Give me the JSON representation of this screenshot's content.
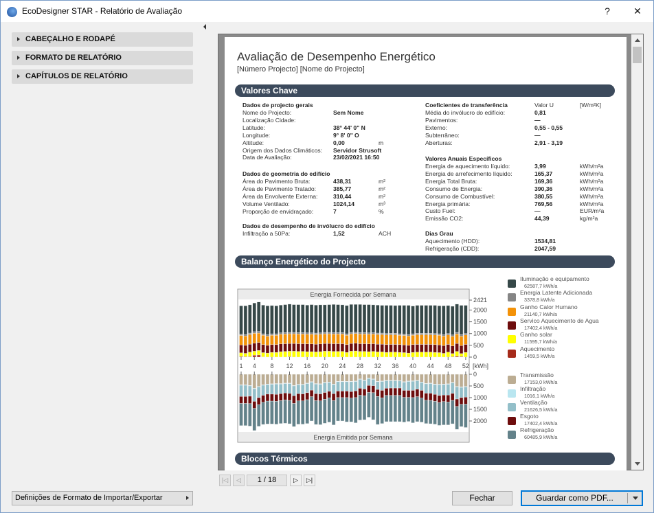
{
  "window": {
    "title": "EcoDesigner STAR - Relatório de Avaliação",
    "help": "?",
    "close": "✕"
  },
  "sidebar": {
    "sections": [
      "CABEÇALHO E RODAPÉ",
      "FORMATO DE RELATÓRIO",
      "CAPÍTULOS DE RELATÓRIO"
    ],
    "import_export": "Definições de Formato de Importar/Exportar"
  },
  "report": {
    "title": "Avaliação de Desempenho Energético",
    "subtitle": "[Número Projecto] [Nome do Projecto]",
    "sections": [
      "Valores Chave",
      "Balanço Energético do Projecto",
      "Blocos Térmicos"
    ],
    "general": {
      "heading": "Dados de projecto gerais",
      "rows": [
        [
          "Nome do Projecto:",
          "Sem Nome",
          ""
        ],
        [
          "Localização Cidade:",
          "",
          ""
        ],
        [
          "Latitude:",
          "38° 44' 0\" N",
          ""
        ],
        [
          "Longitude:",
          "9° 8' 0\" O",
          ""
        ],
        [
          "Altitude:",
          "0,00",
          "m"
        ],
        [
          "Origem dos Dados Climáticos:",
          "Servidor Strusoft",
          ""
        ],
        [
          "Data de Avaliação:",
          "23/02/2021 16:50",
          ""
        ]
      ]
    },
    "geometry": {
      "heading": "Dados de geometria do edifício",
      "rows": [
        [
          "Área do Pavimento Bruta:",
          "438,31",
          "m²"
        ],
        [
          "Área de Pavimento Tratado:",
          "385,77",
          "m²"
        ],
        [
          "Área da Envolvente Externa:",
          "310,44",
          "m²"
        ],
        [
          "Volume Ventilado:",
          "1024,14",
          "m³"
        ],
        [
          "Proporção de envidraçado:",
          "7",
          "%"
        ]
      ]
    },
    "envelope": {
      "heading": "Dados de desempenho de invólucro do edifício",
      "rows": [
        [
          "Infiltração a 50Pa:",
          "1,52",
          "ACH"
        ]
      ]
    },
    "transfer": {
      "heading": "Coeficientes de transferência",
      "col_value": "Valor U",
      "col_unit": "[W/m²K]",
      "rows": [
        [
          "Média do invólucro do edifício:",
          "0,81",
          ""
        ],
        [
          "Pavimentos:",
          "—",
          ""
        ],
        [
          "Externo:",
          "0,55 - 0,55",
          ""
        ],
        [
          "Subterrâneo:",
          "—",
          ""
        ],
        [
          "Aberturas:",
          "2,91 - 3,19",
          ""
        ]
      ]
    },
    "annual": {
      "heading": "Valores Anuais Específicos",
      "rows": [
        [
          "Energia de aquecimento líquido:",
          "3,99",
          "kWh/m²a"
        ],
        [
          "Energia de arrefecimento líquido:",
          "165,37",
          "kWh/m²a"
        ],
        [
          "Energia Total Bruta:",
          "169,36",
          "kWh/m²a"
        ],
        [
          "Consumo de Energia:",
          "390,36",
          "kWh/m²a"
        ],
        [
          "Consumo de Combustível:",
          "380,55",
          "kWh/m²a"
        ],
        [
          "Energia primária:",
          "769,56",
          "kWh/m²a"
        ],
        [
          "Custo Fuel:",
          "—",
          "EUR/m²a"
        ],
        [
          "Emissão CO2:",
          "44,39",
          "kg/m²a"
        ]
      ]
    },
    "degree_days": {
      "heading": "Dias Grau",
      "rows": [
        [
          "Aquecimento (HDD):",
          "1534,81",
          ""
        ],
        [
          "Refrigeração (CDD):",
          "2047,59",
          ""
        ]
      ]
    }
  },
  "chart_data": {
    "type": "bar",
    "stacked": true,
    "title_top": "Energia Fornecida por Semana",
    "title_bottom": "Energia Emitida por Semana",
    "unit": "[kWh]",
    "x": [
      1,
      2,
      3,
      4,
      5,
      6,
      7,
      8,
      9,
      10,
      11,
      12,
      13,
      14,
      15,
      16,
      17,
      18,
      19,
      20,
      21,
      22,
      23,
      24,
      25,
      26,
      27,
      28,
      29,
      30,
      31,
      32,
      33,
      34,
      35,
      36,
      37,
      38,
      39,
      40,
      41,
      42,
      43,
      44,
      45,
      46,
      47,
      48,
      49,
      50,
      51,
      52
    ],
    "x_ticks": [
      1,
      4,
      8,
      12,
      16,
      20,
      24,
      28,
      32,
      36,
      40,
      44,
      48,
      52
    ],
    "top_yticks": [
      0,
      500,
      1000,
      1500,
      2000,
      2421
    ],
    "top_ylim": [
      0,
      2421
    ],
    "bottom_yticks": [
      0,
      500,
      1000,
      1500,
      2000
    ],
    "bottom_ylim": [
      0,
      2400
    ],
    "top_series": [
      {
        "name": "Aquecimento",
        "total": "1459,5 kWh/a",
        "color": "#a52a1a",
        "values": [
          30,
          20,
          20,
          80,
          90,
          10,
          0,
          0,
          0,
          0,
          0,
          20,
          0,
          0,
          0,
          0,
          0,
          0,
          0,
          0,
          0,
          0,
          0,
          0,
          0,
          0,
          0,
          0,
          0,
          0,
          0,
          0,
          0,
          0,
          0,
          0,
          0,
          0,
          0,
          0,
          0,
          0,
          0,
          0,
          0,
          0,
          0,
          0,
          20,
          40,
          30,
          0
        ]
      },
      {
        "name": "Ganho solar",
        "total": "11595,7 kWh/a",
        "color": "#ffff00",
        "values": [
          150,
          140,
          190,
          170,
          190,
          180,
          170,
          200,
          200,
          230,
          240,
          230,
          250,
          240,
          240,
          230,
          230,
          220,
          230,
          250,
          250,
          240,
          240,
          240,
          200,
          250,
          260,
          240,
          240,
          230,
          240,
          220,
          220,
          200,
          210,
          210,
          200,
          190,
          170,
          200,
          210,
          210,
          210,
          210,
          200,
          190,
          160,
          210,
          130,
          200,
          120,
          200
        ]
      },
      {
        "name": "Servico Aquecimento de Agua",
        "total": "17402,4 kWh/a",
        "color": "#6e0d0d",
        "values": [
          340,
          340,
          340,
          340,
          340,
          340,
          330,
          330,
          330,
          330,
          330,
          330,
          330,
          330,
          330,
          330,
          330,
          330,
          330,
          330,
          330,
          330,
          330,
          330,
          330,
          330,
          330,
          330,
          330,
          330,
          330,
          330,
          330,
          330,
          330,
          330,
          330,
          330,
          330,
          330,
          330,
          330,
          330,
          330,
          330,
          330,
          330,
          330,
          330,
          340,
          340,
          340
        ]
      },
      {
        "name": "Ganho Calor Humano",
        "total": "21140,7 kWh/a",
        "color": "#f39208",
        "values": [
          400,
          400,
          410,
          420,
          400,
          400,
          390,
          400,
          400,
          410,
          410,
          410,
          410,
          410,
          410,
          410,
          410,
          410,
          410,
          410,
          410,
          410,
          410,
          410,
          400,
          410,
          410,
          410,
          410,
          410,
          410,
          410,
          410,
          410,
          410,
          410,
          400,
          400,
          400,
          400,
          410,
          410,
          410,
          410,
          410,
          410,
          400,
          400,
          400,
          400,
          400,
          400
        ]
      },
      {
        "name": "Energia Latente Adicionada",
        "total": "3378,8 kWh/a",
        "color": "#858585",
        "values": [
          60,
          60,
          60,
          70,
          70,
          60,
          60,
          60,
          60,
          60,
          60,
          60,
          60,
          60,
          60,
          60,
          60,
          60,
          60,
          60,
          60,
          60,
          60,
          60,
          60,
          60,
          60,
          60,
          60,
          60,
          60,
          60,
          60,
          60,
          60,
          60,
          60,
          60,
          60,
          60,
          60,
          60,
          60,
          60,
          60,
          60,
          60,
          60,
          60,
          70,
          70,
          60
        ]
      },
      {
        "name": "Iluminação e equipamento",
        "total": "62587,7 kWh/a",
        "color": "#364848",
        "values": [
          1200,
          1220,
          1200,
          1220,
          1250,
          1220,
          1230,
          1200,
          1190,
          1180,
          1190,
          1200,
          1180,
          1190,
          1190,
          1180,
          1200,
          1190,
          1190,
          1170,
          1180,
          1200,
          1190,
          1180,
          1200,
          1190,
          1180,
          1200,
          1190,
          1200,
          1180,
          1190,
          1180,
          1200,
          1190,
          1180,
          1210,
          1220,
          1240,
          1180,
          1190,
          1190,
          1190,
          1190,
          1200,
          1190,
          1230,
          1190,
          1220,
          1200,
          1240,
          1200
        ]
      }
    ],
    "bottom_series": [
      {
        "name": "Transmissão",
        "total": "17153,0 kWh/a",
        "color": "#bcad93",
        "values": [
          450,
          450,
          480,
          600,
          520,
          450,
          420,
          410,
          400,
          400,
          380,
          380,
          480,
          430,
          430,
          380,
          320,
          400,
          410,
          350,
          330,
          420,
          300,
          300,
          300,
          300,
          290,
          200,
          250,
          160,
          200,
          300,
          290,
          260,
          260,
          260,
          270,
          320,
          290,
          280,
          260,
          330,
          390,
          380,
          420,
          430,
          420,
          410,
          350,
          520,
          540,
          520
        ]
      },
      {
        "name": "Infiltração",
        "total": "1016,1 kWh/a",
        "color": "#b9e6f0",
        "values": [
          20,
          20,
          20,
          20,
          20,
          20,
          20,
          20,
          20,
          20,
          20,
          20,
          20,
          20,
          20,
          20,
          20,
          20,
          20,
          20,
          20,
          20,
          20,
          20,
          20,
          20,
          20,
          20,
          20,
          20,
          20,
          20,
          20,
          20,
          20,
          20,
          20,
          20,
          20,
          20,
          20,
          20,
          20,
          20,
          20,
          20,
          20,
          20,
          20,
          20,
          20,
          20
        ]
      },
      {
        "name": "Ventilação",
        "total": "21626,5 kWh/a",
        "color": "#93bfc9",
        "values": [
          480,
          480,
          440,
          540,
          460,
          430,
          410,
          420,
          440,
          410,
          400,
          420,
          420,
          380,
          390,
          390,
          340,
          410,
          410,
          410,
          380,
          390,
          400,
          400,
          400,
          420,
          400,
          380,
          360,
          300,
          270,
          330,
          380,
          320,
          310,
          310,
          300,
          350,
          380,
          390,
          360,
          340,
          400,
          410,
          420,
          460,
          450,
          460,
          450,
          520,
          440,
          440
        ]
      },
      {
        "name": "Esgoto",
        "total": "17402,4 kWh/a",
        "color": "#6e0d0d",
        "values": [
          300,
          300,
          320,
          300,
          300,
          300,
          300,
          300,
          300,
          300,
          300,
          300,
          330,
          310,
          300,
          300,
          280,
          300,
          300,
          290,
          280,
          300,
          280,
          280,
          280,
          280,
          290,
          300,
          290,
          300,
          300,
          300,
          320,
          310,
          320,
          320,
          320,
          300,
          300,
          310,
          320,
          330,
          300,
          310,
          300,
          300,
          280,
          300,
          300,
          320,
          290,
          300
        ]
      },
      {
        "name": "Refrigeração",
        "total": "60485,9 kWh/a",
        "color": "#63828a",
        "values": [
          950,
          950,
          960,
          950,
          930,
          950,
          980,
          980,
          980,
          980,
          1000,
          1000,
          990,
          1000,
          1000,
          1020,
          1040,
          1020,
          1020,
          1030,
          1040,
          1040,
          1000,
          1000,
          1040,
          1020,
          1080,
          1060,
          1030,
          1060,
          1160,
          1200,
          1100,
          1120,
          1120,
          1120,
          1120,
          1060,
          1030,
          1080,
          1070,
          1030,
          1000,
          1000,
          980,
          980,
          1000,
          980,
          1000,
          980,
          950,
          1000
        ]
      }
    ]
  },
  "pagination": {
    "page": "1 / 18"
  },
  "buttons": {
    "close": "Fechar",
    "save_pdf": "Guardar como PDF..."
  },
  "colors": {
    "section_bar": "#3c4a5c",
    "accent": "#0078d7"
  }
}
